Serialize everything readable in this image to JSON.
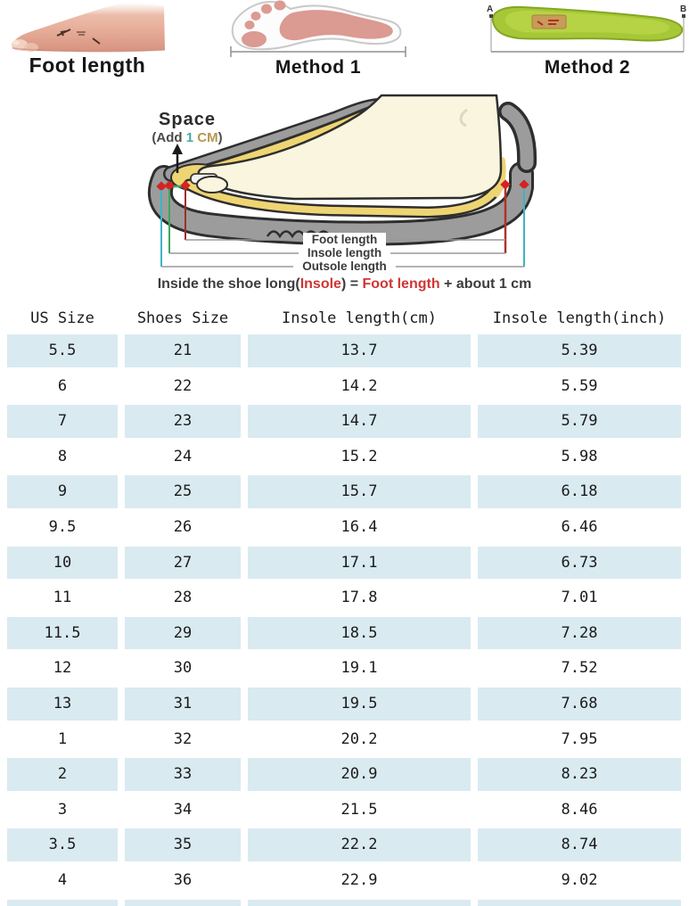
{
  "methods": {
    "foot": {
      "label": "Foot length"
    },
    "method1": {
      "label": "Method 1"
    },
    "method2": {
      "label": "Method 2",
      "marker_a": "A",
      "marker_b": "B"
    }
  },
  "diagram": {
    "space_title": "Space",
    "add_open": "(Add ",
    "add_num": "1 ",
    "add_unit": "CM",
    "add_close": ")",
    "lines": [
      {
        "label": "Foot length",
        "color": "#a63028"
      },
      {
        "label": "Insole length",
        "color": "#3aa85c"
      },
      {
        "label": "Outsole length",
        "color": "#3db4c6"
      }
    ],
    "formula": {
      "pre": "Inside the shoe long(",
      "insole": "Insole",
      "eq": ") = ",
      "foot": "Foot length",
      "post": " + about 1 cm"
    }
  },
  "size_table": {
    "headers": [
      "US Size",
      "Shoes Size",
      "Insole length(cm)",
      "Insole length(inch)"
    ],
    "rows": [
      [
        "5.5",
        "21",
        "13.7",
        "5.39"
      ],
      [
        "6",
        "22",
        "14.2",
        "5.59"
      ],
      [
        "7",
        "23",
        "14.7",
        "5.79"
      ],
      [
        "8",
        "24",
        "15.2",
        "5.98"
      ],
      [
        "9",
        "25",
        "15.7",
        "6.18"
      ],
      [
        "9.5",
        "26",
        "16.4",
        "6.46"
      ],
      [
        "10",
        "27",
        "17.1",
        "6.73"
      ],
      [
        "11",
        "28",
        "17.8",
        "7.01"
      ],
      [
        "11.5",
        "29",
        "18.5",
        "7.28"
      ],
      [
        "12",
        "30",
        "19.1",
        "7.52"
      ],
      [
        "13",
        "31",
        "19.5",
        "7.68"
      ],
      [
        "1",
        "32",
        "20.2",
        "7.95"
      ],
      [
        "2",
        "33",
        "20.9",
        "8.23"
      ],
      [
        "3",
        "34",
        "21.5",
        "8.46"
      ],
      [
        "3.5",
        "35",
        "22.2",
        "8.74"
      ],
      [
        "4",
        "36",
        "22.9",
        "9.02"
      ]
    ]
  },
  "colors": {
    "row_alt": "#d9eaf1",
    "accent_red": "#d03535",
    "space_num": "#4aa8a2",
    "space_unit": "#b5974e",
    "insole_green": "#a6c837"
  }
}
